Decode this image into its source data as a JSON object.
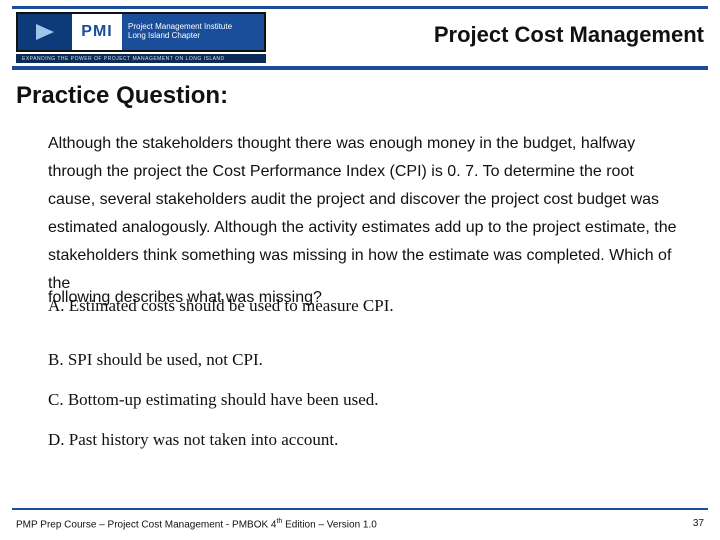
{
  "logo": {
    "pmi": "PMI",
    "line1": "Project Management Institute",
    "line2": "Long Island Chapter",
    "tagline": "EXPANDING THE POWER OF PROJECT MANAGEMENT ON LONG ISLAND"
  },
  "header": {
    "title": "Project Cost Management"
  },
  "section": {
    "heading": "Practice Question:"
  },
  "question": {
    "stem": "Although the stakeholders thought there was enough money in the budget, halfway through the project the Cost Performance Index (CPI) is 0. 7.  To determine the root cause, several stakeholders audit the project and discover the project cost budget was estimated analogously.  Although the activity estimates add up to the project estimate, the stakeholders think something was missing in how the estimate was completed.  Which of the",
    "final_line": "following describes what was missing?",
    "choices": [
      "A.   Estimated costs should be used to measure CPI.",
      "B.   SPI should be used, not CPI.",
      "C.   Bottom-up estimating should have been used.",
      "D.   Past history was not taken into account."
    ]
  },
  "footer": {
    "text_pre": "PMP Prep Course – Project Cost Management - PMBOK 4",
    "sup": "th",
    "text_post": " Edition – Version 1.0",
    "page": "37"
  },
  "colors": {
    "brand_blue": "#1a4e9a",
    "dark_blue": "#0b2a55",
    "text": "#111111",
    "background": "#ffffff"
  },
  "typography": {
    "title_font": "Verdana",
    "title_size_pt": 22,
    "section_size_pt": 24,
    "body_font": "Arial",
    "body_size_pt": 16,
    "choice_font": "Times New Roman",
    "choice_size_pt": 17,
    "footer_size_pt": 10
  }
}
